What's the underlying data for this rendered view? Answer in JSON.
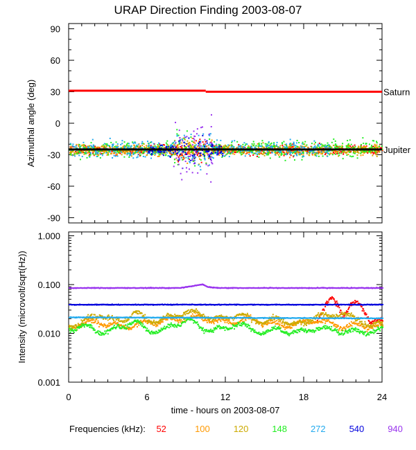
{
  "chart_data": [
    {
      "type": "scatter",
      "title": "URAP Direction Finding  2003-08-07",
      "ylabel": "Azimuthal angle (deg)",
      "xlim": [
        0,
        24
      ],
      "ylim": [
        -95,
        95
      ],
      "yticks": [
        -90,
        -60,
        -30,
        0,
        30,
        60,
        90
      ],
      "reference_lines": [
        {
          "name": "Saturn",
          "color": "#ff0000",
          "segments": [
            [
              0,
              10.5,
              31
            ],
            [
              10.5,
              24,
              30
            ]
          ]
        },
        {
          "name": "Jupiter",
          "color": "#000000",
          "segments": [
            [
              0,
              24,
              -25
            ]
          ]
        }
      ],
      "series_summary": [
        {
          "name": "52",
          "center": -25,
          "spread": 5,
          "active_hours": [
            [
              0,
              24
            ]
          ]
        },
        {
          "name": "100",
          "center": -25,
          "spread": 5,
          "active_hours": [
            [
              0,
              24
            ]
          ]
        },
        {
          "name": "120",
          "center": -25,
          "spread": 5,
          "active_hours": [
            [
              0,
              24
            ]
          ]
        },
        {
          "name": "148",
          "center": -24,
          "spread": 8,
          "active_hours": [
            [
              0,
              24
            ]
          ]
        },
        {
          "name": "272",
          "center": -24,
          "spread": 8,
          "active_hours": [
            [
              0,
              20
            ]
          ]
        },
        {
          "name": "540",
          "center": -25,
          "spread": 6,
          "active_hours": [
            [
              6,
              12
            ]
          ]
        },
        {
          "name": "940",
          "center": -25,
          "spread": 15,
          "active_hours": [
            [
              8,
              11
            ]
          ]
        }
      ]
    },
    {
      "type": "line",
      "xlabel": "time - hours on 2003-08-07",
      "ylabel": "Intensity (microvolt/sqrt(Hz))",
      "yscale": "log",
      "xlim": [
        0,
        24
      ],
      "ylim": [
        0.001,
        1.2
      ],
      "yticks": [
        0.001,
        0.01,
        0.1,
        1.0
      ],
      "series": [
        {
          "name": "52",
          "start": 19,
          "end": 24,
          "points": [
            [
              19.0,
              0.022
            ],
            [
              19.5,
              0.035
            ],
            [
              20.0,
              0.048
            ],
            [
              20.5,
              0.04
            ],
            [
              21.0,
              0.025
            ],
            [
              21.5,
              0.04
            ],
            [
              22.0,
              0.042
            ],
            [
              22.5,
              0.03
            ],
            [
              23.0,
              0.02
            ],
            [
              24.0,
              0.018
            ]
          ]
        },
        {
          "name": "100",
          "start": 0,
          "end": 24,
          "points": [
            [
              0,
              0.014
            ],
            [
              2,
              0.018
            ],
            [
              4,
              0.014
            ],
            [
              6,
              0.017
            ],
            [
              8,
              0.02
            ],
            [
              10,
              0.022
            ],
            [
              12,
              0.017
            ],
            [
              14,
              0.02
            ],
            [
              16,
              0.015
            ],
            [
              18,
              0.017
            ],
            [
              19,
              0.02
            ],
            [
              20,
              0.016
            ],
            [
              21,
              0.014
            ],
            [
              22,
              0.015
            ],
            [
              24,
              0.014
            ]
          ]
        },
        {
          "name": "120",
          "start": 0,
          "end": 24,
          "points": [
            [
              0,
              0.015
            ],
            [
              1.5,
              0.02
            ],
            [
              2.5,
              0.025
            ],
            [
              4,
              0.017
            ],
            [
              5,
              0.03
            ],
            [
              6,
              0.018
            ],
            [
              8,
              0.022
            ],
            [
              9,
              0.03
            ],
            [
              10,
              0.025
            ],
            [
              12,
              0.02
            ],
            [
              13,
              0.028
            ],
            [
              14,
              0.018
            ],
            [
              16,
              0.02
            ],
            [
              18,
              0.015
            ],
            [
              19,
              0.028
            ],
            [
              20,
              0.02
            ],
            [
              21,
              0.03
            ],
            [
              22,
              0.018
            ],
            [
              24,
              0.015
            ]
          ]
        },
        {
          "name": "148",
          "start": 0,
          "end": 24,
          "points": [
            [
              0,
              0.012
            ],
            [
              1,
              0.016
            ],
            [
              2,
              0.011
            ],
            [
              4,
              0.013
            ],
            [
              5,
              0.02
            ],
            [
              6,
              0.011
            ],
            [
              8,
              0.014
            ],
            [
              9,
              0.022
            ],
            [
              10,
              0.013
            ],
            [
              12,
              0.012
            ],
            [
              13,
              0.018
            ],
            [
              14,
              0.011
            ],
            [
              16,
              0.012
            ],
            [
              18,
              0.011
            ],
            [
              19,
              0.014
            ],
            [
              20,
              0.012
            ],
            [
              22,
              0.011
            ],
            [
              24,
              0.012
            ]
          ]
        },
        {
          "name": "272",
          "start": 0,
          "end": 24,
          "points": [
            [
              0,
              0.022
            ],
            [
              24,
              0.021
            ]
          ]
        },
        {
          "name": "540",
          "start": 0,
          "end": 24,
          "points": [
            [
              0,
              0.04
            ],
            [
              24,
              0.04
            ]
          ]
        },
        {
          "name": "940",
          "start": 0,
          "end": 24,
          "points": [
            [
              0,
              0.088
            ],
            [
              8.5,
              0.088
            ],
            [
              9.5,
              0.097
            ],
            [
              10.2,
              0.105
            ],
            [
              10.6,
              0.092
            ],
            [
              11.5,
              0.088
            ],
            [
              24,
              0.088
            ]
          ]
        }
      ],
      "xticks": [
        0,
        6,
        12,
        18,
        24
      ]
    }
  ],
  "legend": {
    "label": "Frequencies (kHz):",
    "items": [
      {
        "label": "52",
        "color": "#ff0000"
      },
      {
        "label": "100",
        "color": "#ff9900"
      },
      {
        "label": "120",
        "color": "#ccaa00"
      },
      {
        "label": "148",
        "color": "#22ee22"
      },
      {
        "label": "272",
        "color": "#22aaee"
      },
      {
        "label": "540",
        "color": "#0000dd"
      },
      {
        "label": "940",
        "color": "#9933ee"
      }
    ]
  }
}
